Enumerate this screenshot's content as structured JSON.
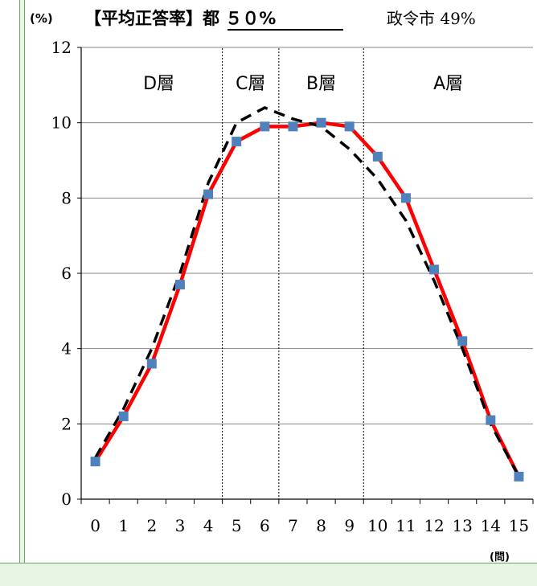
{
  "chart_data": {
    "type": "line",
    "unit_label": "(%)",
    "title": "【平均正答率】都 ５０%",
    "comparison_label": "政令市 49%",
    "x_unit_label": "(問)",
    "xlabel": "",
    "ylabel": "",
    "x": [
      0,
      1,
      2,
      3,
      4,
      5,
      6,
      7,
      8,
      9,
      10,
      11,
      12,
      13,
      14,
      15
    ],
    "ylim": [
      0,
      12
    ],
    "yticks": [
      0,
      2,
      4,
      6,
      8,
      10,
      12
    ],
    "grid": "horizontal",
    "series": [
      {
        "style": "solid-markers",
        "color": "#ff0000",
        "marker_color": "#4f81bd",
        "values": [
          1.0,
          2.2,
          3.6,
          5.7,
          8.1,
          9.5,
          9.9,
          9.9,
          10.0,
          9.9,
          9.1,
          8.0,
          6.1,
          4.2,
          2.1,
          0.6
        ]
      },
      {
        "style": "dashed",
        "color": "#000000",
        "values": [
          1.1,
          2.4,
          4.0,
          6.0,
          8.4,
          10.0,
          10.4,
          10.1,
          9.9,
          9.3,
          8.5,
          7.4,
          5.8,
          4.0,
          2.0,
          0.6
        ]
      }
    ],
    "layers": [
      {
        "label": "D層",
        "from": 0,
        "to": 4.5
      },
      {
        "label": "C層",
        "from": 4.5,
        "to": 6.5
      },
      {
        "label": "B層",
        "from": 6.5,
        "to": 9.5
      },
      {
        "label": "A層",
        "from": 9.5,
        "to": 15.5
      }
    ]
  }
}
